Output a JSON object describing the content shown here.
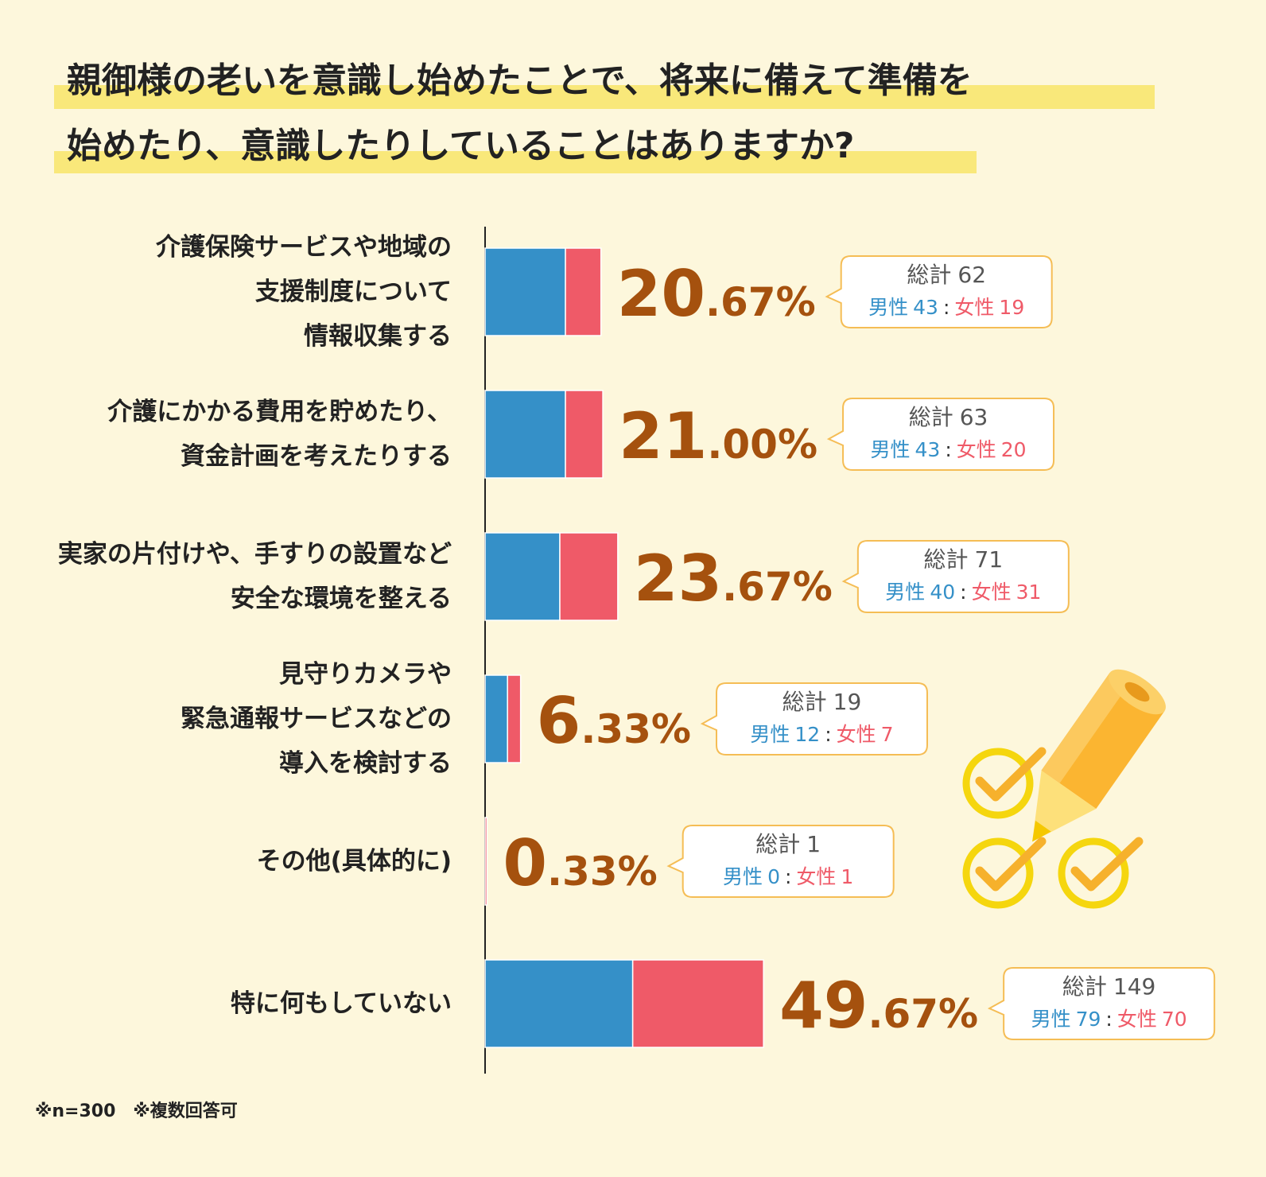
{
  "chart_data": {
    "type": "bar",
    "orientation": "horizontal",
    "stacked": true,
    "title_lines": [
      "親御様の老いを意識し始めたことで、将来に備えて準備を",
      "始めたり、意識したりしていることはありますか?"
    ],
    "categories": [
      "介護保険サービスや地域の\n支援制度について\n情報収集する",
      "介護にかかる費用を貯めたり、\n資金計画を考えたりする",
      "実家の片付けや、手すりの設置など\n安全な環境を整える",
      "見守りカメラや\n緊急通報サービスなどの\n導入を検討する",
      "その他(具体的に)",
      "特に何もしていない"
    ],
    "series": [
      {
        "name": "男性",
        "color": "#3590c8",
        "values": [
          43,
          43,
          40,
          12,
          0,
          79
        ]
      },
      {
        "name": "女性",
        "color": "#ef5a68",
        "values": [
          19,
          20,
          31,
          7,
          1,
          70
        ]
      }
    ],
    "percent_labels": [
      "20.67%",
      "21.00%",
      "23.67%",
      "6.33%",
      "0.33%",
      "49.67%"
    ],
    "total_label": "総計",
    "totals": [
      62,
      63,
      71,
      19,
      1,
      149
    ],
    "ratio_separator": ":",
    "xlim": [
      0,
      300
    ],
    "note": "※n=300　※複数回答可"
  }
}
